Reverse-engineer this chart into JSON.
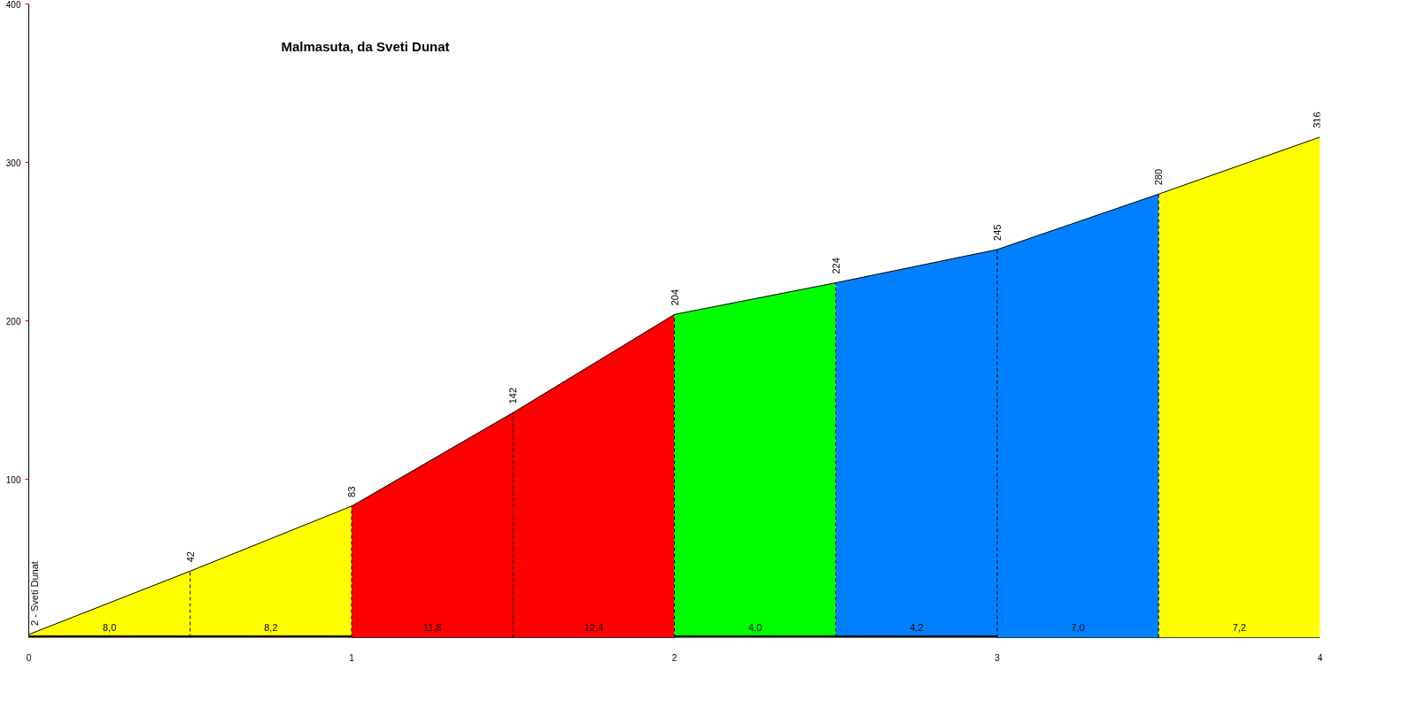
{
  "chart_data": {
    "type": "area",
    "title": "Malmasuta, da Sveti Dunat",
    "xlim": [
      0,
      4
    ],
    "xticks": [
      0,
      1,
      2,
      3,
      4
    ],
    "ylim": [
      0,
      400
    ],
    "yticks": [
      100,
      200,
      300,
      400
    ],
    "grid": false,
    "series": [
      {
        "color": "#ffff00",
        "x": [
          0,
          0.5,
          1
        ],
        "values": [
          2,
          42,
          83
        ]
      },
      {
        "color": "#ff0000",
        "x": [
          1,
          1.5,
          2
        ],
        "values": [
          83,
          142,
          204
        ]
      },
      {
        "color": "#00ff00",
        "x": [
          2,
          2.5
        ],
        "values": [
          204,
          224
        ]
      },
      {
        "color": "#0080ff",
        "x": [
          2.5,
          3,
          3.5
        ],
        "values": [
          224,
          245,
          280
        ]
      },
      {
        "color": "#ffff00",
        "x": [
          3.5,
          4
        ],
        "values": [
          280,
          316
        ]
      },
      {
        "type": "line",
        "color": "#000000",
        "marker": "none",
        "x": [
          0,
          0.5,
          1,
          1.5,
          2,
          2.5,
          3,
          3.5,
          4
        ],
        "values": [
          2,
          42,
          83,
          142,
          204,
          224,
          245,
          280,
          316
        ],
        "value_labels": [
          "2 - Sveti Dunat",
          "42",
          "83",
          "142",
          "204",
          "224",
          "245",
          "280",
          "316"
        ]
      }
    ],
    "ref_lines": [
      {
        "axis": "x",
        "value": 0.5,
        "color": "#000000",
        "line_style": "dashed"
      },
      {
        "axis": "x",
        "value": 1,
        "color": "#000000",
        "line_style": "dashed"
      },
      {
        "axis": "x",
        "value": 1.5,
        "color": "#000000",
        "line_style": "dashed"
      },
      {
        "axis": "x",
        "value": 2,
        "color": "#000000",
        "line_style": "dashed"
      },
      {
        "axis": "x",
        "value": 2.5,
        "color": "#000000",
        "line_style": "dashed"
      },
      {
        "axis": "x",
        "value": 3,
        "color": "#000000",
        "line_style": "dashed"
      },
      {
        "axis": "x",
        "value": 3.5,
        "color": "#000000",
        "line_style": "dashed"
      }
    ],
    "annotations": [
      {
        "text": "8,0",
        "x": 0.25,
        "y": 2
      },
      {
        "text": "8,2",
        "x": 0.75,
        "y": 2
      },
      {
        "text": "11,8",
        "x": 1.25,
        "y": 2
      },
      {
        "text": "12,4",
        "x": 1.75,
        "y": 2
      },
      {
        "text": "4,0",
        "x": 2.25,
        "y": 2
      },
      {
        "text": "4,2",
        "x": 2.75,
        "y": 2
      },
      {
        "text": "7,0",
        "x": 3.25,
        "y": 2
      },
      {
        "text": "7,2",
        "x": 3.75,
        "y": 2
      }
    ]
  }
}
